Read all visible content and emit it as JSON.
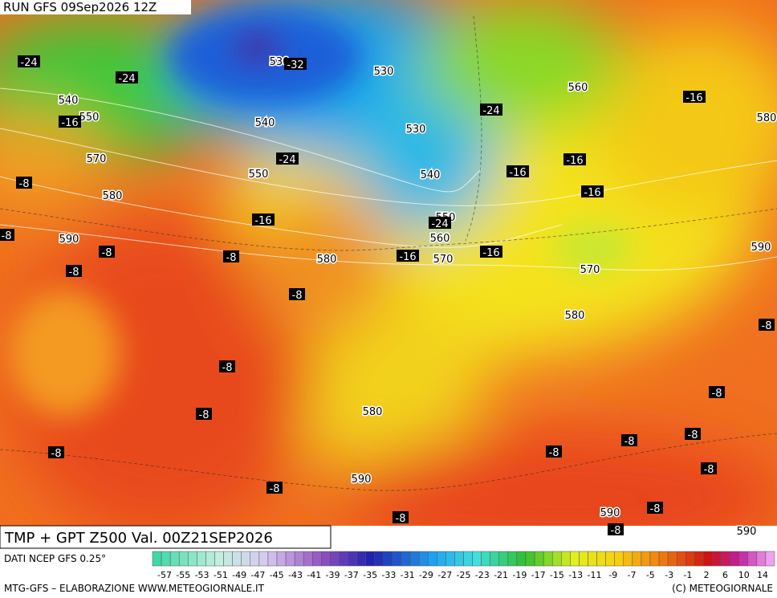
{
  "header": {
    "run": "RUN GFS 09Sep2026 12Z",
    "title": "TMP + GPT Z500 Val. 00Z21SEP2026",
    "source": "DATI NCEP GFS 0.25°",
    "credit": "MTG-GFS – ELABORAZIONE WWW.METEOGIORNALE.IT",
    "copyright": "(C) METEOGIORNALE"
  },
  "legend": {
    "labels": [
      "-57",
      "-55",
      "-53",
      "-51",
      "-49",
      "-47",
      "-45",
      "-43",
      "-41",
      "-39",
      "-37",
      "-35",
      "-33",
      "-31",
      "-29",
      "-27",
      "-25",
      "-23",
      "-21",
      "-19",
      "-17",
      "-15",
      "-13",
      "-11",
      "-9",
      "-7",
      "-5",
      "-3",
      "-1",
      "2",
      "6",
      "10",
      "14"
    ]
  },
  "map": {
    "temperature_labels": [
      "-24",
      "-24",
      "-16",
      "-8",
      "-8",
      "-8",
      "-8",
      "-8",
      "-24",
      "-16",
      "-24",
      "-16",
      "-16",
      "-16",
      "-16",
      "-16",
      "-16",
      "-24",
      "-8",
      "-8",
      "-8",
      "-8",
      "-8",
      "-8",
      "-8",
      "-8",
      "-8",
      "-8",
      "-8",
      "-8",
      "-8",
      "-8",
      "-32"
    ],
    "height_labels": [
      "530",
      "530",
      "540",
      "550",
      "560",
      "540",
      "530",
      "570",
      "550",
      "540",
      "580",
      "550",
      "560",
      "590",
      "580",
      "570",
      "570",
      "580",
      "580",
      "590",
      "580",
      "590",
      "590",
      "590"
    ]
  }
}
